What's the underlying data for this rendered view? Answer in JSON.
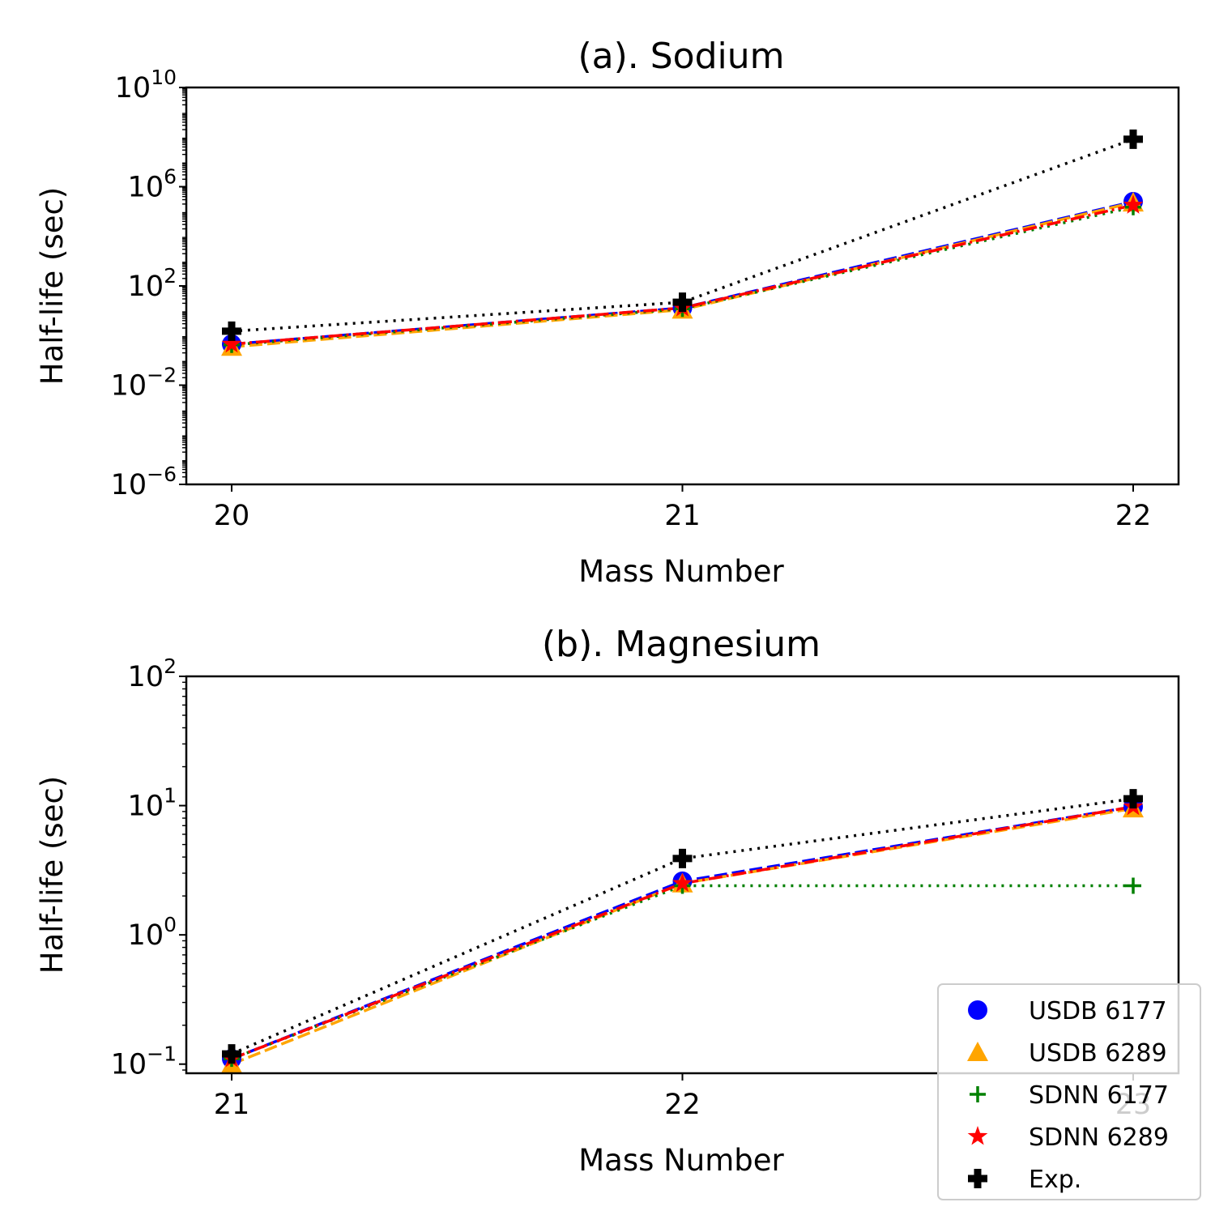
{
  "chart_data": [
    {
      "type": "line",
      "title": "(a). Sodium",
      "xlabel": "Mass Number",
      "ylabel": "Half-life (sec)",
      "yscale": "log",
      "ylim": [
        1e-06,
        10000000000.0
      ],
      "x": [
        20,
        21,
        22
      ],
      "x_ticks": [
        "20",
        "21",
        "22"
      ],
      "y_ticks": [
        {
          "base": "10",
          "exp": "−6",
          "value": 1e-06
        },
        {
          "base": "10",
          "exp": "−2",
          "value": 0.01
        },
        {
          "base": "10",
          "exp": "2",
          "value": 100
        },
        {
          "base": "10",
          "exp": "6",
          "value": 1000000.0
        },
        {
          "base": "10",
          "exp": "10",
          "value": 10000000000.0
        }
      ],
      "series": [
        {
          "name": "USDB 6177",
          "values": [
            0.45,
            13,
            250000.0
          ],
          "color": "#0000ff",
          "marker": "circle",
          "line": "dashed"
        },
        {
          "name": "USDB 6289",
          "values": [
            0.35,
            11,
            230000.0
          ],
          "color": "#ffa500",
          "marker": "triangle",
          "line": "dashed"
        },
        {
          "name": "SDNN 6177",
          "values": [
            0.42,
            12,
            150000.0
          ],
          "color": "#008000",
          "marker": "plus",
          "line": "dotted"
        },
        {
          "name": "SDNN 6289",
          "values": [
            0.45,
            13,
            180000.0
          ],
          "color": "#ff0000",
          "marker": "star",
          "line": "dashdot"
        },
        {
          "name": "Exp.",
          "values": [
            1.5,
            22,
            82000000.0
          ],
          "color": "#000000",
          "marker": "pluspp",
          "line": "dotted"
        }
      ]
    },
    {
      "type": "line",
      "title": "(b). Magnesium",
      "xlabel": "Mass Number",
      "ylabel": "Half-life (sec)",
      "yscale": "log",
      "ylim": [
        0.085,
        100
      ],
      "x": [
        21,
        22,
        23
      ],
      "x_ticks": [
        "21",
        "22",
        "23"
      ],
      "y_ticks": [
        {
          "base": "10",
          "exp": "−1",
          "value": 0.1
        },
        {
          "base": "10",
          "exp": "0",
          "value": 1
        },
        {
          "base": "10",
          "exp": "1",
          "value": 10
        },
        {
          "base": "10",
          "exp": "2",
          "value": 100
        }
      ],
      "series": [
        {
          "name": "USDB 6177",
          "values": [
            0.11,
            2.6,
            9.8
          ],
          "color": "#0000ff",
          "marker": "circle",
          "line": "dashed"
        },
        {
          "name": "USDB 6289",
          "values": [
            0.1,
            2.5,
            9.5
          ],
          "color": "#ffa500",
          "marker": "triangle",
          "line": "dashed"
        },
        {
          "name": "SDNN 6177",
          "values": [
            0.11,
            2.4,
            2.4
          ],
          "color": "#008000",
          "marker": "plus",
          "line": "dotted"
        },
        {
          "name": "SDNN 6289",
          "values": [
            0.11,
            2.5,
            9.8
          ],
          "color": "#ff0000",
          "marker": "star",
          "line": "dashdot"
        },
        {
          "name": "Exp.",
          "values": [
            0.12,
            3.9,
            11.3
          ],
          "color": "#000000",
          "marker": "pluspp",
          "line": "dotted"
        }
      ]
    }
  ],
  "legend": {
    "placement": "lower-right",
    "entries": [
      "USDB 6177",
      "USDB 6289",
      "SDNN 6177",
      "SDNN 6289",
      "Exp."
    ]
  }
}
